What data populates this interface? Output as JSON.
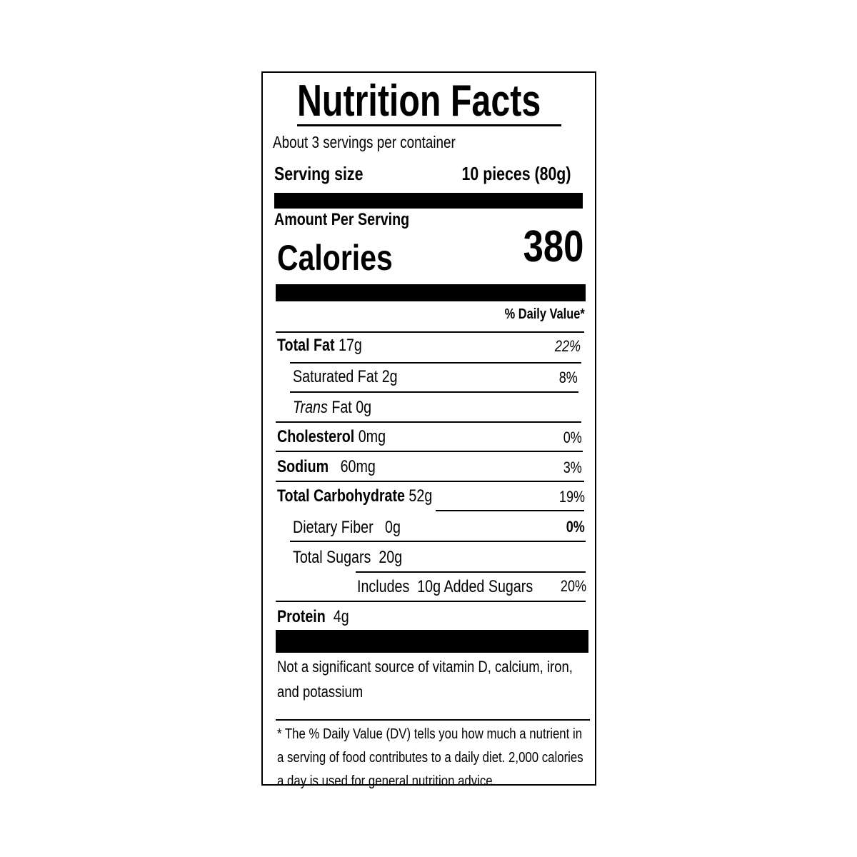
{
  "title": "Nutrition Facts",
  "servings_per_container": "About 3 servings per container",
  "serving_size": {
    "label": "Serving size",
    "value": "10 pieces (80g)"
  },
  "amount_per_serving": "Amount Per Serving",
  "calories": {
    "label": "Calories",
    "value": "380"
  },
  "daily_value_header": "% Daily Value*",
  "nutrients": [
    {
      "name": "Total Fat",
      "amount": "17g",
      "dv": "22%"
    },
    {
      "name": "Saturated Fat",
      "amount": "2g",
      "dv": "8%"
    },
    {
      "name": "Trans",
      "name_suffix": "Fat",
      "amount": "0g",
      "dv": ""
    },
    {
      "name": "Cholesterol",
      "amount": "0mg",
      "dv": "0%"
    },
    {
      "name": "Sodium",
      "amount": "60mg",
      "dv": "3%"
    },
    {
      "name": "Total Carbohydrate",
      "amount": "52g",
      "dv": "19%"
    },
    {
      "name": "Dietary Fiber",
      "amount": "0g",
      "dv": "0%"
    },
    {
      "name": "Total Sugars",
      "amount": "20g",
      "dv": ""
    },
    {
      "name": "Includes",
      "amount": "10g",
      "name_suffix": "Added Sugars",
      "dv": "20%"
    },
    {
      "name": "Protein",
      "amount": "4g",
      "dv": ""
    }
  ],
  "vitamins_note": "Not a significant source of vitamin D, calcium, iron, and potassium",
  "footnote": "* The % Daily Value (DV) tells you how much a nutrient in a serving of food contributes to a daily diet. 2,000 calories a day is used for general nutrition advice."
}
